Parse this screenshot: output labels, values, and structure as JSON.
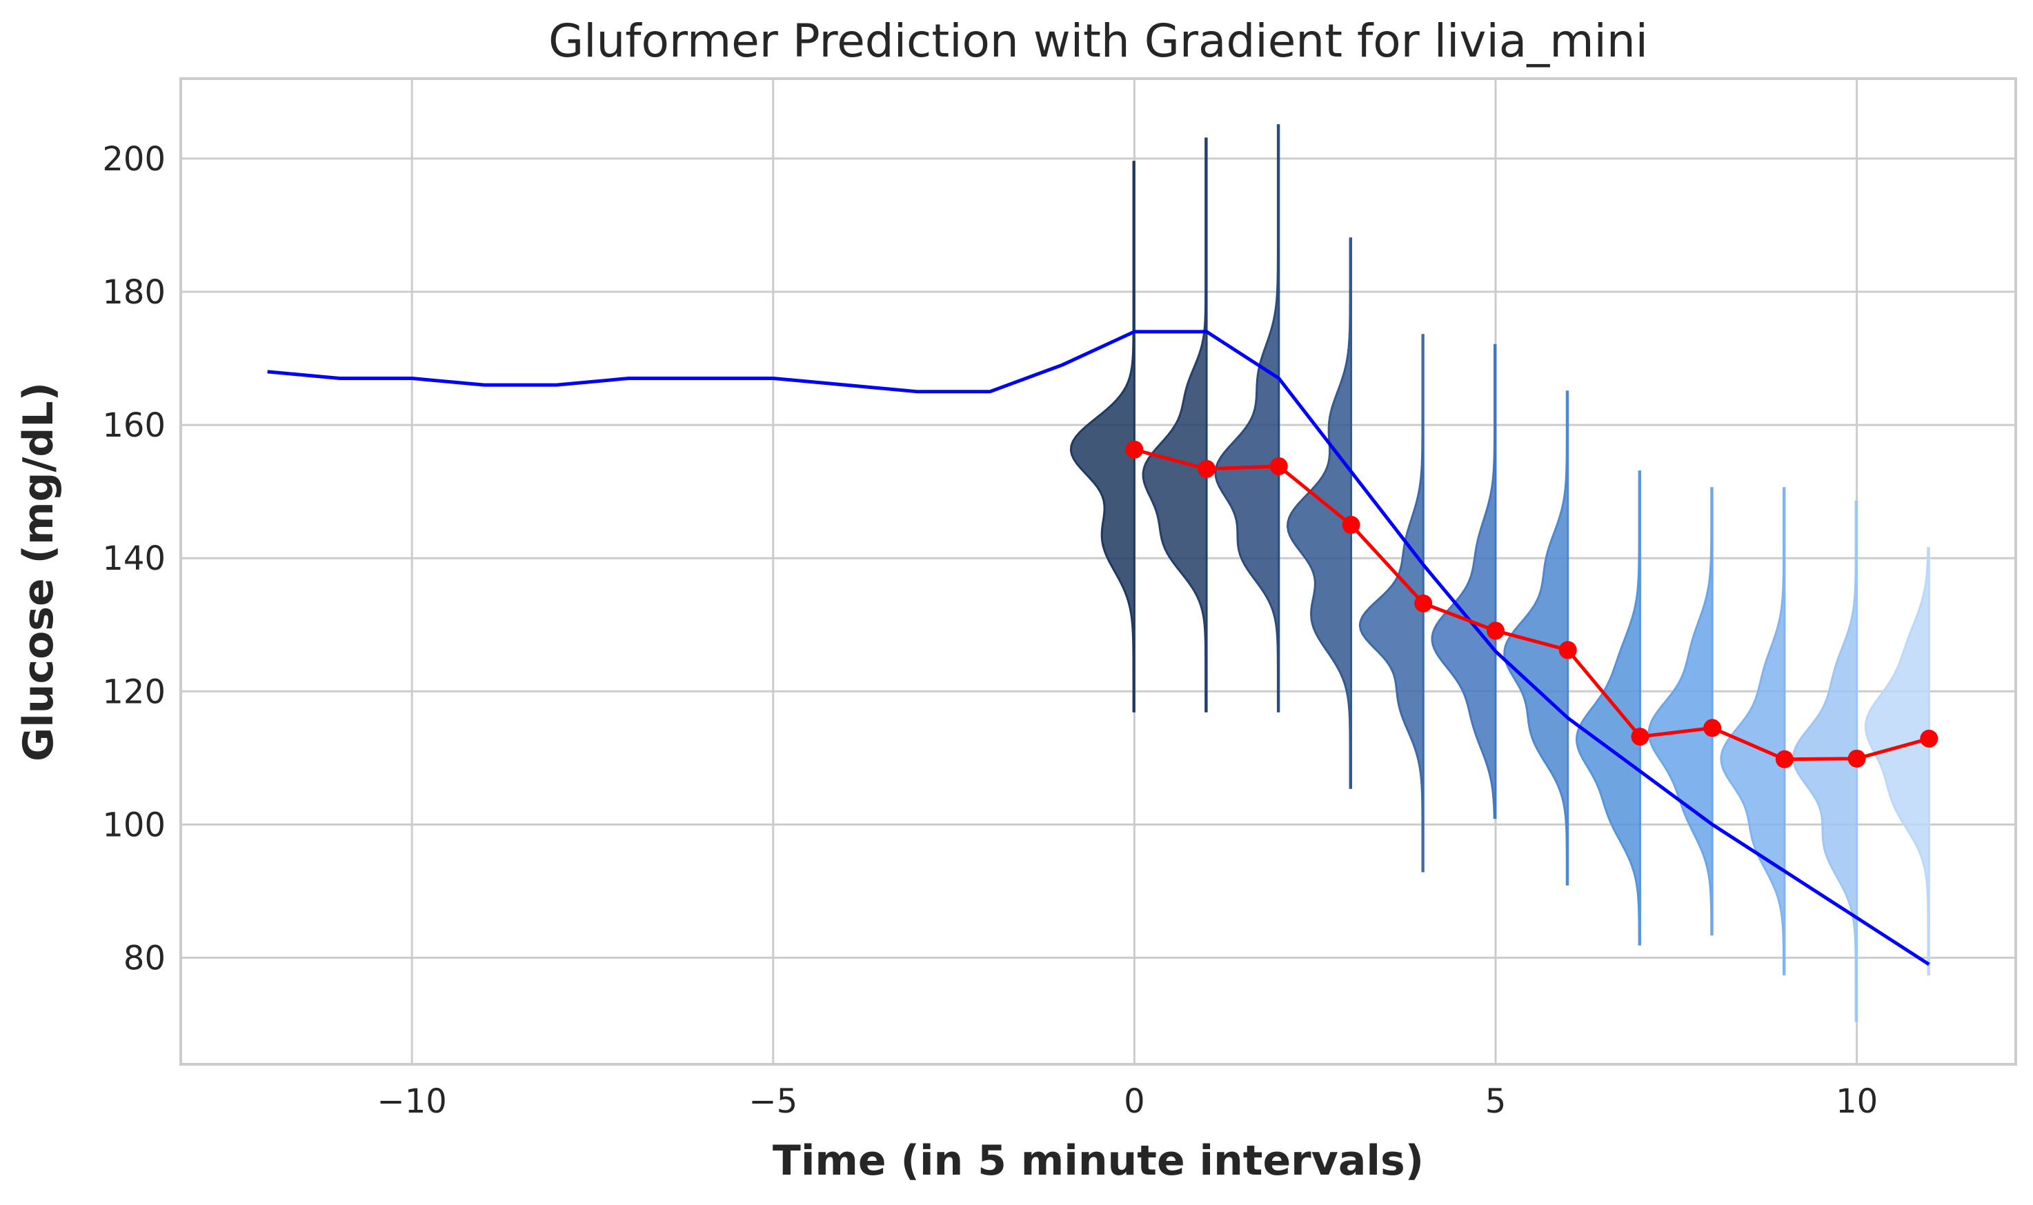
{
  "chart_data": {
    "type": "line",
    "title": "Gluformer Prediction with Gradient for livia_mini",
    "xlabel": "Time (in 5 minute intervals)",
    "ylabel": "Glucose (mg/dL)",
    "xlim": [
      -13.2,
      12.2
    ],
    "ylim": [
      64,
      212
    ],
    "grid": true,
    "xticks": [
      -10,
      -5,
      0,
      5,
      10
    ],
    "xtick_labels": [
      "−10",
      "−5",
      "0",
      "5",
      "10"
    ],
    "yticks": [
      80,
      100,
      120,
      140,
      160,
      180,
      200
    ],
    "ytick_labels": [
      "80",
      "100",
      "120",
      "140",
      "160",
      "180",
      "200"
    ],
    "series": [
      {
        "color": "#0000ff",
        "x": [
          -12,
          -11,
          -10,
          -9,
          -8,
          -7,
          -6,
          -5,
          -4,
          -3,
          -2,
          -1,
          0,
          1,
          2,
          3,
          4,
          5,
          6,
          7,
          8,
          9,
          10,
          11
        ],
        "values": [
          168,
          167,
          167,
          166,
          166,
          167,
          167,
          167,
          166,
          165,
          165,
          169,
          174,
          174,
          167,
          153,
          139,
          126,
          116,
          108,
          100,
          93,
          86,
          79
        ]
      },
      {
        "color": "#ff0000",
        "markers": true,
        "x": [
          0,
          1,
          2,
          3,
          4,
          5,
          6,
          7,
          8,
          9,
          10,
          11
        ],
        "values": [
          156.3,
          153.4,
          153.8,
          145,
          133.2,
          129.1,
          126.2,
          113.2,
          114.5,
          109.8,
          109.9,
          112.9
        ]
      }
    ],
    "distributions": [
      {
        "x": 0,
        "min": 117,
        "max": 199.5,
        "peaks": [
          [
            156.5,
            1.0,
            4.5
          ],
          [
            143,
            0.5,
            5
          ]
        ],
        "color": "#1f3a60"
      },
      {
        "x": 1,
        "min": 117,
        "max": 203,
        "peaks": [
          [
            153,
            0.9,
            5
          ],
          [
            142,
            0.55,
            4.5
          ],
          [
            165,
            0.25,
            4
          ]
        ],
        "color": "#253f69"
      },
      {
        "x": 2,
        "min": 117,
        "max": 205,
        "peaks": [
          [
            153,
            0.95,
            5
          ],
          [
            141,
            0.55,
            4.5
          ],
          [
            167,
            0.3,
            5
          ]
        ],
        "color": "#2b4b7c"
      },
      {
        "x": 3,
        "min": 105.5,
        "max": 188,
        "peaks": [
          [
            145,
            0.9,
            5
          ],
          [
            131,
            0.55,
            5
          ],
          [
            160,
            0.3,
            5
          ]
        ],
        "color": "#33598f"
      },
      {
        "x": 4,
        "min": 93,
        "max": 173.5,
        "peaks": [
          [
            130,
            1.0,
            4
          ],
          [
            119,
            0.4,
            5
          ],
          [
            141,
            0.3,
            5
          ]
        ],
        "color": "#3c69a8"
      },
      {
        "x": 5,
        "min": 101,
        "max": 172,
        "peaks": [
          [
            128,
            0.9,
            5
          ],
          [
            141,
            0.25,
            5
          ],
          [
            116,
            0.3,
            5
          ]
        ],
        "color": "#4477bd"
      },
      {
        "x": 6,
        "min": 91,
        "max": 165,
        "peaks": [
          [
            126,
            0.9,
            5
          ],
          [
            114,
            0.5,
            5
          ],
          [
            139,
            0.3,
            5
          ]
        ],
        "color": "#4d88d0"
      },
      {
        "x": 7,
        "min": 82,
        "max": 153,
        "peaks": [
          [
            113,
            0.95,
            5
          ],
          [
            102,
            0.45,
            5
          ],
          [
            124,
            0.3,
            5
          ]
        ],
        "color": "#5595dc"
      },
      {
        "x": 8,
        "min": 83.5,
        "max": 150.5,
        "peaks": [
          [
            114,
            0.95,
            5
          ],
          [
            103,
            0.4,
            5
          ],
          [
            126,
            0.3,
            5
          ]
        ],
        "color": "#6aa6e8"
      },
      {
        "x": 9,
        "min": 77.5,
        "max": 150.5,
        "peaks": [
          [
            110,
            0.95,
            5
          ],
          [
            98,
            0.45,
            5
          ],
          [
            122,
            0.3,
            5
          ]
        ],
        "color": "#80b4f0"
      },
      {
        "x": 10,
        "min": 70.5,
        "max": 148.5,
        "peaks": [
          [
            110,
            0.9,
            5
          ],
          [
            97,
            0.45,
            5
          ],
          [
            122,
            0.3,
            5
          ]
        ],
        "color": "#9dc6f5"
      },
      {
        "x": 11,
        "min": 77.5,
        "max": 141.5,
        "peaks": [
          [
            115,
            0.9,
            5
          ],
          [
            104,
            0.5,
            5
          ],
          [
            126,
            0.3,
            5
          ]
        ],
        "color": "#bcd8f9"
      }
    ]
  }
}
